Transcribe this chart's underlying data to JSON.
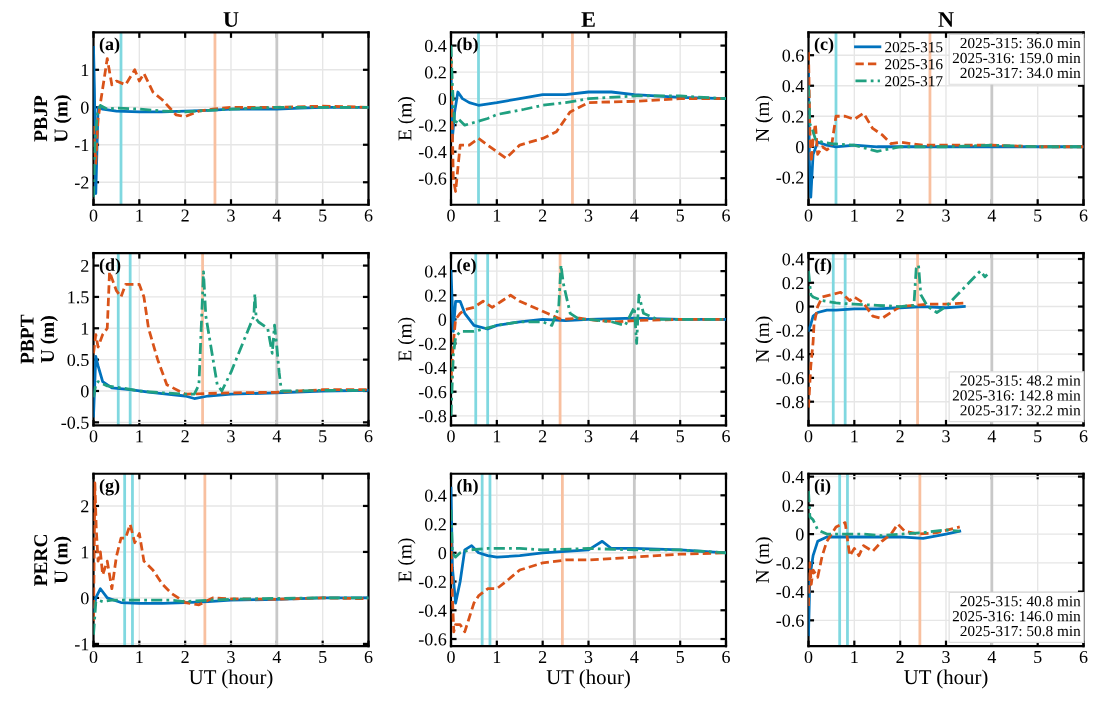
{
  "chart_data": [
    {
      "type": "line",
      "title": "U",
      "ylabel": "PBJP\nU (m)",
      "xlim": [
        0,
        6
      ],
      "xticks": [
        0,
        1,
        2,
        3,
        4,
        5,
        6
      ],
      "ylim": [
        -2.6,
        2
      ],
      "yticks": [
        -2,
        -1,
        0,
        1
      ],
      "grid": true,
      "legend": false,
      "annotations": [
        "(a)"
      ],
      "ref_lines": [
        {
          "axis": "x",
          "value": 0.6,
          "color": "#80d8e0"
        },
        {
          "axis": "x",
          "value": 2.65,
          "color": "#f8c0a0"
        },
        {
          "axis": "x",
          "value": 4,
          "color": "#c8c8c8"
        }
      ],
      "series": [
        {
          "color": "#0072bd",
          "line_style": "solid",
          "x": [
            0,
            0.02,
            0.05,
            0.1,
            0.2,
            0.5,
            1,
            1.5,
            2,
            2.5,
            3,
            3.5,
            4,
            4.5,
            5,
            5.5,
            6
          ],
          "values": [
            1.6,
            0.5,
            -2.3,
            0,
            -0.05,
            -0.1,
            -0.12,
            -0.12,
            -0.1,
            -0.08,
            -0.05,
            -0.05,
            -0.05,
            -0.02,
            0,
            0,
            0
          ]
        },
        {
          "color": "#d95319",
          "line_style": "dashed",
          "x": [
            0,
            0.05,
            0.1,
            0.2,
            0.3,
            0.4,
            0.5,
            0.7,
            0.8,
            0.9,
            1.0,
            1.1,
            1.3,
            1.5,
            1.8,
            2.0,
            2.3,
            2.6,
            3,
            4,
            5,
            6
          ],
          "values": [
            -0.5,
            -1.5,
            -0.3,
            0.5,
            1.3,
            0.6,
            0.7,
            0.6,
            0.8,
            1.0,
            0.7,
            0.9,
            0.4,
            0.2,
            -0.2,
            -0.25,
            -0.1,
            -0.05,
            0,
            0,
            0.03,
            0
          ]
        },
        {
          "color": "#20a080",
          "line_style": "dashdot",
          "x": [
            0,
            0.03,
            0.08,
            0.15,
            0.3,
            0.5,
            1,
            1.5,
            2,
            2.5,
            3,
            4,
            5,
            6
          ],
          "values": [
            -2.4,
            -1,
            -0.2,
            0.05,
            -0.05,
            -0.02,
            -0.05,
            -0.1,
            -0.12,
            -0.08,
            -0.05,
            0,
            0,
            0
          ]
        }
      ]
    },
    {
      "type": "line",
      "title": "E",
      "ylabel": "E (m)",
      "xlim": [
        0,
        6
      ],
      "xticks": [
        0,
        1,
        2,
        3,
        4,
        5,
        6
      ],
      "ylim": [
        -0.8,
        0.5
      ],
      "yticks": [
        -0.6,
        -0.4,
        -0.2,
        0,
        0.2,
        0.4
      ],
      "grid": true,
      "legend": false,
      "annotations": [
        "(b)"
      ],
      "ref_lines": [
        {
          "axis": "x",
          "value": 0.6,
          "color": "#80d8e0"
        },
        {
          "axis": "x",
          "value": 2.65,
          "color": "#f8c0a0"
        },
        {
          "axis": "x",
          "value": 4,
          "color": "#c8c8c8"
        }
      ],
      "series": [
        {
          "color": "#0072bd",
          "line_style": "solid",
          "x": [
            0,
            0.03,
            0.08,
            0.15,
            0.25,
            0.4,
            0.6,
            1,
            1.5,
            2,
            2.5,
            3,
            3.5,
            4,
            5,
            6
          ],
          "values": [
            0.2,
            -0.3,
            -0.1,
            0.05,
            0,
            -0.03,
            -0.05,
            -0.03,
            0,
            0.03,
            0.03,
            0.05,
            0.05,
            0.03,
            0.01,
            0
          ]
        },
        {
          "color": "#d95319",
          "line_style": "dashed",
          "x": [
            0,
            0.05,
            0.1,
            0.2,
            0.4,
            0.6,
            0.8,
            1.0,
            1.2,
            1.5,
            2,
            2.3,
            2.6,
            3,
            4,
            5,
            6
          ],
          "values": [
            0.3,
            -0.6,
            -0.7,
            -0.35,
            -0.35,
            -0.3,
            -0.35,
            -0.4,
            -0.45,
            -0.35,
            -0.3,
            -0.25,
            -0.1,
            -0.03,
            -0.02,
            0,
            0
          ]
        },
        {
          "color": "#20a080",
          "line_style": "dashdot",
          "x": [
            0,
            0.03,
            0.08,
            0.15,
            0.3,
            0.5,
            0.8,
            1,
            1.3,
            1.6,
            2,
            2.5,
            3,
            4,
            5,
            6
          ],
          "values": [
            0.4,
            0.1,
            -0.2,
            -0.15,
            -0.2,
            -0.18,
            -0.15,
            -0.12,
            -0.1,
            -0.08,
            -0.05,
            -0.03,
            0,
            0.02,
            0.02,
            0
          ]
        }
      ]
    },
    {
      "type": "line",
      "title": "N",
      "ylabel": "N (m)",
      "xlim": [
        0,
        6
      ],
      "xticks": [
        0,
        1,
        2,
        3,
        4,
        5,
        6
      ],
      "ylim": [
        -0.38,
        0.75
      ],
      "yticks": [
        -0.2,
        0,
        0.2,
        0.4,
        0.6
      ],
      "grid": true,
      "legend": "top",
      "annotations": [
        "(c)",
        "2025-315: 36.0 min\n2025-316: 159.0 min\n2025-317: 34.0 min"
      ],
      "ref_lines": [
        {
          "axis": "x",
          "value": 0.6,
          "color": "#80d8e0"
        },
        {
          "axis": "x",
          "value": 2.65,
          "color": "#f8c0a0"
        },
        {
          "axis": "x",
          "value": 4,
          "color": "#c8c8c8"
        }
      ],
      "series": [
        {
          "name": "2025-315",
          "color": "#0072bd",
          "line_style": "solid",
          "x": [
            0,
            0.02,
            0.05,
            0.1,
            0.2,
            0.4,
            0.6,
            1,
            1.5,
            2,
            3,
            4,
            5,
            6
          ],
          "values": [
            0.5,
            -0.1,
            -0.33,
            -0.05,
            0.03,
            0.01,
            0,
            0.01,
            0,
            0,
            0,
            0,
            0,
            0
          ]
        },
        {
          "name": "2025-316",
          "color": "#d95319",
          "line_style": "dashed",
          "x": [
            0,
            0.03,
            0.06,
            0.1,
            0.15,
            0.2,
            0.3,
            0.4,
            0.5,
            0.6,
            0.8,
            1.0,
            1.2,
            1.4,
            1.6,
            1.8,
            2,
            2.5,
            3,
            4,
            5,
            6
          ],
          "values": [
            0.62,
            0.1,
            -0.1,
            0.05,
            0.15,
            -0.05,
            0,
            -0.02,
            0,
            0.2,
            0.2,
            0.18,
            0.22,
            0.12,
            0.08,
            0.02,
            0.03,
            0.01,
            0.01,
            0.01,
            0,
            0
          ]
        },
        {
          "name": "2025-317",
          "color": "#20a080",
          "line_style": "dashdot",
          "x": [
            0,
            0.03,
            0.08,
            0.15,
            0.3,
            0.5,
            1,
            1.5,
            2,
            3,
            4,
            5,
            6
          ],
          "values": [
            0.4,
            0.15,
            0.12,
            0.05,
            0.03,
            0.02,
            0.01,
            -0.03,
            0,
            0,
            0.01,
            0,
            0
          ]
        }
      ]
    },
    {
      "type": "line",
      "ylabel": "PBPT\nU (m)",
      "xlim": [
        0,
        6
      ],
      "xticks": [
        0,
        1,
        2,
        3,
        4,
        5,
        6
      ],
      "ylim": [
        -0.55,
        2.2
      ],
      "yticks": [
        -0.5,
        0,
        0.5,
        1,
        1.5,
        2
      ],
      "grid": true,
      "legend": false,
      "annotations": [
        "(d)"
      ],
      "ref_lines": [
        {
          "axis": "x",
          "value": 0.54,
          "color": "#80d8e0"
        },
        {
          "axis": "x",
          "value": 0.8,
          "color": "#80d8e0"
        },
        {
          "axis": "x",
          "value": 2.38,
          "color": "#f8c0a0"
        },
        {
          "axis": "x",
          "value": 4,
          "color": "#c8c8c8"
        }
      ],
      "series": [
        {
          "color": "#0072bd",
          "line_style": "solid",
          "x": [
            0,
            0.05,
            0.1,
            0.2,
            0.4,
            0.8,
            1.2,
            1.6,
            2,
            2.2,
            2.5,
            3,
            4,
            5,
            6
          ],
          "values": [
            -0.4,
            0.55,
            0.4,
            0.15,
            0.05,
            0.02,
            -0.02,
            -0.05,
            -0.08,
            -0.12,
            -0.08,
            -0.05,
            -0.03,
            0,
            0.01
          ]
        },
        {
          "color": "#d95319",
          "line_style": "dashed",
          "x": [
            0,
            0.05,
            0.1,
            0.2,
            0.3,
            0.35,
            0.4,
            0.5,
            0.6,
            0.7,
            0.8,
            1.0,
            1.1,
            1.2,
            1.4,
            1.6,
            2,
            3,
            4,
            5,
            6
          ],
          "values": [
            0.6,
            0.9,
            0.7,
            0.9,
            1.0,
            1.9,
            1.8,
            1.6,
            1.5,
            1.7,
            1.7,
            1.7,
            1.5,
            1.0,
            0.5,
            0.1,
            -0.05,
            -0.03,
            -0.02,
            0.02,
            0.02
          ]
        },
        {
          "color": "#20a080",
          "line_style": "dashdot",
          "x": [
            0,
            0.05,
            0.1,
            0.3,
            0.6,
            1,
            1.5,
            2,
            2.2,
            2.3,
            2.35,
            2.4,
            2.45,
            2.7,
            2.8,
            3.0,
            3.5,
            3.52,
            3.55,
            3.6,
            3.8,
            3.9,
            3.95,
            4.0,
            4.05,
            4.1,
            4.5,
            5,
            6
          ],
          "values": [
            -0.1,
            0.1,
            0.15,
            0.08,
            0.05,
            0,
            -0.03,
            -0.05,
            -0.05,
            0.1,
            1.0,
            1.9,
            1.2,
            0.1,
            0.0,
            0.3,
            1.2,
            1.55,
            1.15,
            1.1,
            1.0,
            0.6,
            1.05,
            0.7,
            0.3,
            0.0,
            0,
            0.01,
            0.01
          ]
        }
      ]
    },
    {
      "type": "line",
      "ylabel": "E (m)",
      "xlim": [
        0,
        6
      ],
      "xticks": [
        0,
        1,
        2,
        3,
        4,
        5,
        6
      ],
      "ylim": [
        -0.88,
        0.55
      ],
      "yticks": [
        -0.8,
        -0.6,
        -0.4,
        -0.2,
        0,
        0.2,
        0.4
      ],
      "grid": true,
      "legend": false,
      "annotations": [
        "(e)"
      ],
      "ref_lines": [
        {
          "axis": "x",
          "value": 0.54,
          "color": "#80d8e0"
        },
        {
          "axis": "x",
          "value": 0.8,
          "color": "#80d8e0"
        },
        {
          "axis": "x",
          "value": 2.38,
          "color": "#f8c0a0"
        },
        {
          "axis": "x",
          "value": 4,
          "color": "#c8c8c8"
        }
      ],
      "series": [
        {
          "color": "#0072bd",
          "line_style": "solid",
          "x": [
            0,
            0.05,
            0.1,
            0.2,
            0.3,
            0.5,
            0.8,
            1,
            1.5,
            2,
            2.5,
            3,
            4,
            5,
            6
          ],
          "values": [
            0.4,
            -0.1,
            0.15,
            0.15,
            0.05,
            -0.05,
            -0.08,
            -0.05,
            -0.02,
            0,
            -0.01,
            0,
            0.01,
            0,
            0
          ]
        },
        {
          "color": "#d95319",
          "line_style": "dashed",
          "x": [
            0,
            0.05,
            0.1,
            0.2,
            0.3,
            0.5,
            0.7,
            0.9,
            1.1,
            1.3,
            1.5,
            1.8,
            2.1,
            2.4,
            2.8,
            3.2,
            3.6,
            4,
            5,
            6
          ],
          "values": [
            -0.5,
            -0.2,
            0,
            0.05,
            0.08,
            0.1,
            0.15,
            0.1,
            0.15,
            0.2,
            0.15,
            0.1,
            0.05,
            0,
            0.01,
            -0.01,
            -0.02,
            -0.01,
            0,
            0
          ]
        },
        {
          "color": "#20a080",
          "line_style": "dashdot",
          "x": [
            0,
            0.05,
            0.1,
            0.2,
            0.5,
            1,
            1.5,
            2,
            2.2,
            2.35,
            2.4,
            2.45,
            2.6,
            2.8,
            3,
            3.5,
            3.8,
            4.0,
            4.05,
            4.1,
            4.2,
            4.5,
            5,
            6
          ],
          "values": [
            -0.8,
            -0.3,
            -0.15,
            -0.1,
            -0.1,
            -0.05,
            -0.02,
            -0.02,
            -0.05,
            0.1,
            0.45,
            0.3,
            0.05,
            0,
            0,
            -0.02,
            -0.05,
            0.1,
            -0.2,
            0.2,
            0.05,
            0,
            0,
            0
          ]
        }
      ]
    },
    {
      "type": "line",
      "ylabel": "N (m)",
      "xlim": [
        0,
        6
      ],
      "xticks": [
        0,
        1,
        2,
        3,
        4,
        5,
        6
      ],
      "ylim": [
        -1.0,
        0.45
      ],
      "yticks": [
        -0.8,
        -0.6,
        -0.4,
        -0.2,
        0,
        0.2,
        0.4
      ],
      "grid": true,
      "legend": false,
      "annotations": [
        "(f)",
        "2025-315: 48.2 min\n2025-316: 142.8 min\n2025-317: 32.2 min"
      ],
      "ref_lines": [
        {
          "axis": "x",
          "value": 0.54,
          "color": "#80d8e0"
        },
        {
          "axis": "x",
          "value": 0.8,
          "color": "#80d8e0"
        },
        {
          "axis": "x",
          "value": 2.38,
          "color": "#f8c0a0"
        },
        {
          "axis": "x",
          "value": 4,
          "color": "#c8c8c8"
        }
      ],
      "series": [
        {
          "color": "#0072bd",
          "line_style": "solid",
          "x": [
            0,
            0.05,
            0.1,
            0.2,
            0.4,
            0.6,
            1,
            1.5,
            2,
            2.5,
            3,
            3.4
          ],
          "values": [
            -0.2,
            -0.15,
            -0.08,
            -0.05,
            -0.03,
            -0.03,
            -0.02,
            -0.02,
            -0.01,
            0,
            -0.01,
            0
          ]
        },
        {
          "color": "#d95319",
          "line_style": "dashed",
          "x": [
            0,
            0.05,
            0.1,
            0.12,
            0.2,
            0.3,
            0.5,
            0.7,
            0.9,
            1.0,
            1.2,
            1.4,
            1.6,
            2,
            2.3,
            2.6,
            3,
            3.4
          ],
          "values": [
            -0.85,
            -0.5,
            -0.3,
            -0.15,
            0,
            0.08,
            0.1,
            0.12,
            0.05,
            0.08,
            0.03,
            -0.08,
            -0.1,
            0,
            0.01,
            0.02,
            0.02,
            0.03
          ]
        },
        {
          "color": "#20a080",
          "line_style": "dashdot",
          "x": [
            0,
            0.05,
            0.1,
            0.3,
            0.6,
            1,
            1.5,
            2,
            2.3,
            2.35,
            2.4,
            2.45,
            2.6,
            2.8,
            3.0,
            3.2,
            3.5,
            3.75,
            3.85,
            3.9
          ],
          "values": [
            0.3,
            0.1,
            0.08,
            0.05,
            0.03,
            0.02,
            0.01,
            0,
            0.01,
            0.32,
            0.35,
            0.1,
            0,
            -0.05,
            0,
            0.08,
            0.2,
            0.3,
            0.25,
            0.27
          ]
        }
      ]
    },
    {
      "type": "line",
      "ylabel": "PERC\nU (m)",
      "xlabel": "UT (hour)",
      "xlim": [
        0,
        6
      ],
      "xticks": [
        0,
        1,
        2,
        3,
        4,
        5,
        6
      ],
      "ylim": [
        -1.05,
        2.7
      ],
      "yticks": [
        -1,
        0,
        1,
        2
      ],
      "grid": true,
      "legend": false,
      "annotations": [
        "(g)"
      ],
      "ref_lines": [
        {
          "axis": "x",
          "value": 0.68,
          "color": "#80d8e0"
        },
        {
          "axis": "x",
          "value": 0.85,
          "color": "#80d8e0"
        },
        {
          "axis": "x",
          "value": 2.43,
          "color": "#f8c0a0"
        },
        {
          "axis": "x",
          "value": 4,
          "color": "#c8c8c8"
        }
      ],
      "series": [
        {
          "color": "#0072bd",
          "line_style": "solid",
          "x": [
            0,
            0.05,
            0.15,
            0.3,
            0.6,
            1,
            1.5,
            2,
            2.5,
            3,
            4,
            5,
            6
          ],
          "values": [
            -0.3,
            0,
            0.2,
            0,
            -0.1,
            -0.12,
            -0.12,
            -0.1,
            -0.08,
            -0.05,
            -0.03,
            0,
            0
          ]
        },
        {
          "color": "#d95319",
          "line_style": "dashed",
          "x": [
            0,
            0.03,
            0.06,
            0.1,
            0.15,
            0.2,
            0.3,
            0.4,
            0.5,
            0.6,
            0.7,
            0.8,
            0.9,
            1.0,
            1.1,
            1.3,
            1.5,
            1.7,
            2,
            2.3,
            2.6,
            3,
            4,
            5,
            6
          ],
          "values": [
            -0.5,
            2.5,
            1.5,
            0.8,
            1.0,
            0.5,
            0.8,
            0.2,
            0.9,
            1.3,
            1.3,
            1.6,
            1.2,
            1.4,
            0.8,
            0.6,
            0.3,
            0.1,
            -0.1,
            -0.15,
            0,
            -0.02,
            -0.03,
            0,
            -0.02
          ]
        },
        {
          "color": "#20a080",
          "line_style": "dashdot",
          "x": [
            0,
            0.05,
            0.1,
            0.2,
            0.4,
            0.8,
            1.2,
            1.7,
            2,
            2.5,
            3,
            4,
            5,
            6
          ],
          "values": [
            -0.8,
            -0.1,
            -0.05,
            -0.08,
            -0.05,
            -0.05,
            -0.05,
            -0.05,
            -0.08,
            -0.05,
            -0.03,
            -0.01,
            0,
            0
          ]
        }
      ]
    },
    {
      "type": "line",
      "ylabel": "E (m)",
      "xlabel": "UT (hour)",
      "xlim": [
        0,
        6
      ],
      "xticks": [
        0,
        1,
        2,
        3,
        4,
        5,
        6
      ],
      "ylim": [
        -0.65,
        0.55
      ],
      "yticks": [
        -0.6,
        -0.4,
        -0.2,
        0,
        0.2,
        0.4
      ],
      "grid": true,
      "legend": false,
      "annotations": [
        "(h)"
      ],
      "ref_lines": [
        {
          "axis": "x",
          "value": 0.68,
          "color": "#80d8e0"
        },
        {
          "axis": "x",
          "value": 0.85,
          "color": "#80d8e0"
        },
        {
          "axis": "x",
          "value": 2.43,
          "color": "#f8c0a0"
        },
        {
          "axis": "x",
          "value": 4,
          "color": "#c8c8c8"
        }
      ],
      "series": [
        {
          "color": "#0072bd",
          "line_style": "solid",
          "x": [
            0,
            0.03,
            0.1,
            0.2,
            0.3,
            0.45,
            0.6,
            0.8,
            1,
            1.5,
            2,
            2.5,
            3,
            3.3,
            3.5,
            4,
            5,
            6
          ],
          "values": [
            0.45,
            -0.1,
            -0.35,
            -0.2,
            0.02,
            0.05,
            0,
            -0.02,
            -0.03,
            -0.02,
            0,
            0.01,
            0.02,
            0.08,
            0.03,
            0.03,
            0.02,
            0
          ]
        },
        {
          "color": "#d95319",
          "line_style": "dashed",
          "x": [
            0,
            0.03,
            0.06,
            0.1,
            0.2,
            0.3,
            0.4,
            0.5,
            0.6,
            0.8,
            1.0,
            1.2,
            1.5,
            2,
            2.5,
            3,
            4,
            5,
            6
          ],
          "values": [
            0.1,
            -0.3,
            -0.55,
            -0.5,
            -0.5,
            -0.55,
            -0.45,
            -0.35,
            -0.3,
            -0.25,
            -0.25,
            -0.2,
            -0.12,
            -0.07,
            -0.05,
            -0.05,
            -0.03,
            -0.01,
            0
          ]
        },
        {
          "color": "#20a080",
          "line_style": "dashdot",
          "x": [
            0,
            0.03,
            0.1,
            0.2,
            0.4,
            0.8,
            1.5,
            2,
            3,
            4,
            5,
            6
          ],
          "values": [
            0.3,
            0,
            -0.03,
            0,
            0.02,
            0.03,
            0.03,
            0.02,
            0.03,
            0.02,
            0.02,
            0
          ]
        }
      ]
    },
    {
      "type": "line",
      "ylabel": "N (m)",
      "xlabel": "UT (hour)",
      "xlim": [
        0,
        6
      ],
      "xticks": [
        0,
        1,
        2,
        3,
        4,
        5,
        6
      ],
      "ylim": [
        -0.78,
        0.42
      ],
      "yticks": [
        -0.6,
        -0.4,
        -0.2,
        0,
        0.2,
        0.4
      ],
      "grid": true,
      "legend": false,
      "annotations": [
        "(i)",
        "2025-315: 40.8 min\n2025-316: 146.0 min\n2025-317: 50.8 min"
      ],
      "ref_lines": [
        {
          "axis": "x",
          "value": 0.68,
          "color": "#80d8e0"
        },
        {
          "axis": "x",
          "value": 0.85,
          "color": "#80d8e0"
        },
        {
          "axis": "x",
          "value": 2.43,
          "color": "#f8c0a0"
        },
        {
          "axis": "x",
          "value": 4,
          "color": "#c8c8c8"
        }
      ],
      "series": [
        {
          "color": "#0072bd",
          "line_style": "solid",
          "x": [
            0,
            0.03,
            0.1,
            0.2,
            0.4,
            0.8,
            1.2,
            1.6,
            2,
            2.5,
            3,
            3.3
          ],
          "values": [
            -0.7,
            -0.3,
            -0.15,
            -0.05,
            -0.02,
            -0.02,
            -0.02,
            -0.02,
            -0.02,
            -0.03,
            0,
            0.02
          ]
        },
        {
          "color": "#d95319",
          "line_style": "dashed",
          "x": [
            0,
            0.03,
            0.06,
            0.1,
            0.2,
            0.3,
            0.4,
            0.5,
            0.6,
            0.8,
            0.9,
            1.0,
            1.1,
            1.2,
            1.4,
            1.6,
            1.8,
            1.95,
            2.1,
            2.4,
            2.8,
            3.3
          ],
          "values": [
            -0.5,
            -0.2,
            -0.35,
            -0.25,
            -0.3,
            -0.15,
            -0.05,
            0,
            0.05,
            0.08,
            -0.15,
            -0.1,
            -0.15,
            -0.08,
            -0.12,
            -0.05,
            0,
            0.07,
            0.02,
            0,
            0.01,
            0.05
          ]
        },
        {
          "color": "#20a080",
          "line_style": "dashdot",
          "x": [
            0,
            0.03,
            0.1,
            0.2,
            0.4,
            0.8,
            1.2,
            1.6,
            2,
            2.5,
            3,
            3.3
          ],
          "values": [
            0.3,
            0.12,
            0.1,
            0.03,
            0,
            0,
            0,
            -0.01,
            0,
            0.01,
            0.03,
            0.02
          ]
        }
      ]
    }
  ]
}
